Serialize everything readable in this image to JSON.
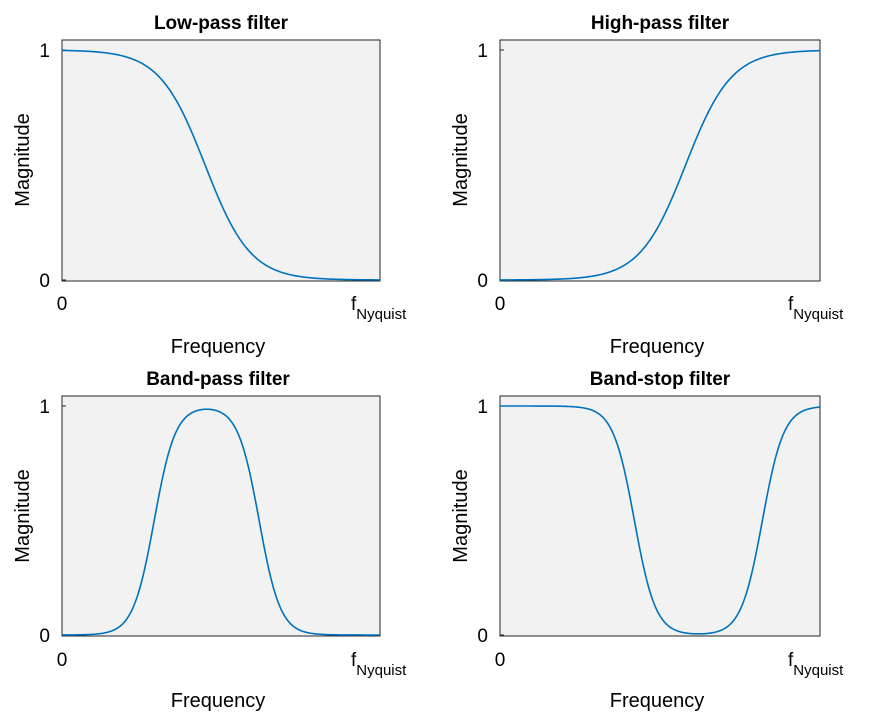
{
  "chart_data": [
    {
      "type": "line",
      "title": "Low-pass filter",
      "xlabel": "Frequency",
      "ylabel": "Magnitude",
      "ylim": [
        0,
        1
      ],
      "xlim": [
        0,
        1
      ],
      "xtick_labels": {
        "start": "0",
        "end_main": "f",
        "end_sub": "Nyquist"
      },
      "ytick_labels": [
        "0",
        "1"
      ],
      "series": [
        {
          "name": "Magnitude",
          "color": "#0072BD",
          "shape": "lowpass",
          "cutoffs": [
            0.45
          ],
          "sharpness": 14
        }
      ]
    },
    {
      "type": "line",
      "title": "High-pass filter",
      "xlabel": "Frequency",
      "ylabel": "Magnitude",
      "ylim": [
        0,
        1
      ],
      "xlim": [
        0,
        1
      ],
      "xtick_labels": {
        "start": "0",
        "end_main": "f",
        "end_sub": "Nyquist"
      },
      "ytick_labels": [
        "0",
        "1"
      ],
      "series": [
        {
          "name": "Magnitude",
          "color": "#0072BD",
          "shape": "highpass",
          "cutoffs": [
            0.58
          ],
          "sharpness": 14
        }
      ]
    },
    {
      "type": "line",
      "title": "Band-pass filter",
      "xlabel": "Frequency",
      "ylabel": "Magnitude",
      "ylim": [
        0,
        1
      ],
      "xlim": [
        0,
        1
      ],
      "xtick_labels": {
        "start": "0",
        "end_main": "f",
        "end_sub": "Nyquist"
      },
      "ytick_labels": [
        "0",
        "1"
      ],
      "series": [
        {
          "name": "Magnitude",
          "color": "#0072BD",
          "shape": "bandpass",
          "cutoffs": [
            0.29,
            0.62
          ],
          "sharpness": 30
        }
      ]
    },
    {
      "type": "line",
      "title": "Band-stop filter",
      "xlabel": "Frequency",
      "ylabel": "Magnitude",
      "ylim": [
        0,
        1
      ],
      "xlim": [
        0,
        1
      ],
      "xtick_labels": {
        "start": "0",
        "end_main": "f",
        "end_sub": "Nyquist"
      },
      "ytick_labels": [
        "0",
        "1"
      ],
      "series": [
        {
          "name": "Magnitude",
          "color": "#0072BD",
          "shape": "bandstop",
          "cutoffs": [
            0.42,
            0.82
          ],
          "sharpness": 30
        }
      ]
    }
  ],
  "colors": {
    "axes_bg": "#F2F2F2",
    "axis_line": "#262626",
    "line": "#0072BD"
  }
}
